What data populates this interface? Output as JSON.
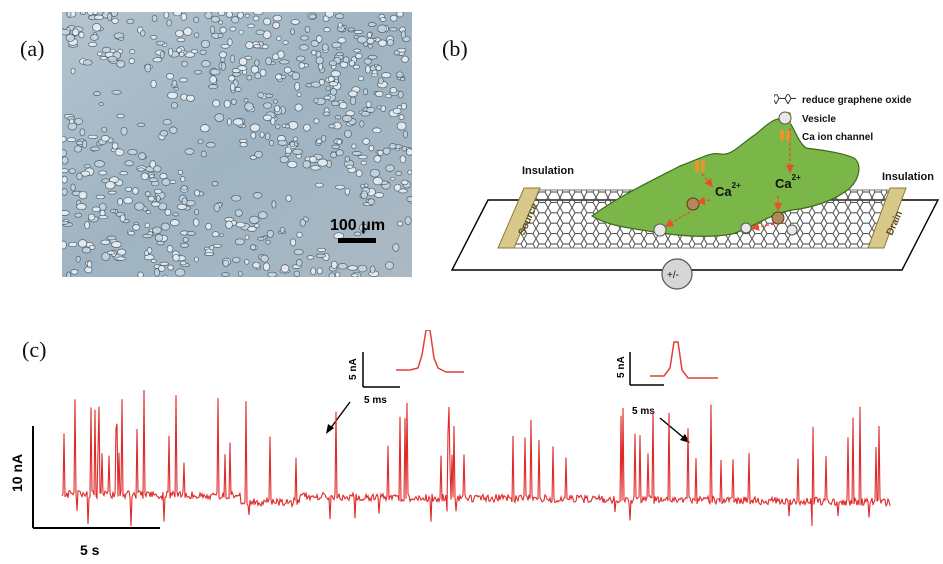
{
  "panels": {
    "a": {
      "label": "(a)",
      "scale_bar": "100 μm"
    },
    "b": {
      "label": "(b)",
      "legend": [
        {
          "icon": "graphene-swatch-icon",
          "text": "reduce graphene oxide"
        },
        {
          "icon": "vesicle-icon",
          "text": "Vesicle"
        },
        {
          "icon": "ca-channel-icon",
          "text": "Ca ion channel"
        }
      ],
      "insulation_left": "Insulation",
      "insulation_right": "Insulation",
      "source": "Source",
      "drain": "Drain",
      "ion_left_base": "Ca",
      "ion_left_sup": "2+",
      "ion_right_base": "Ca",
      "ion_right_sup": "2+",
      "bias": "+/-",
      "colors": {
        "cell": "#7ab648",
        "electrode": "#d8c98a",
        "arrow": "#e8502a"
      }
    },
    "c": {
      "label": "(c)",
      "y_scale": "10 nA",
      "x_scale": "5 s",
      "inset1": {
        "y_scale": "5 nA",
        "x_scale": "5 ms"
      },
      "inset2": {
        "y_scale": "5 nA",
        "x_scale": "5 ms"
      },
      "trace_color": "#e02a2a"
    }
  }
}
